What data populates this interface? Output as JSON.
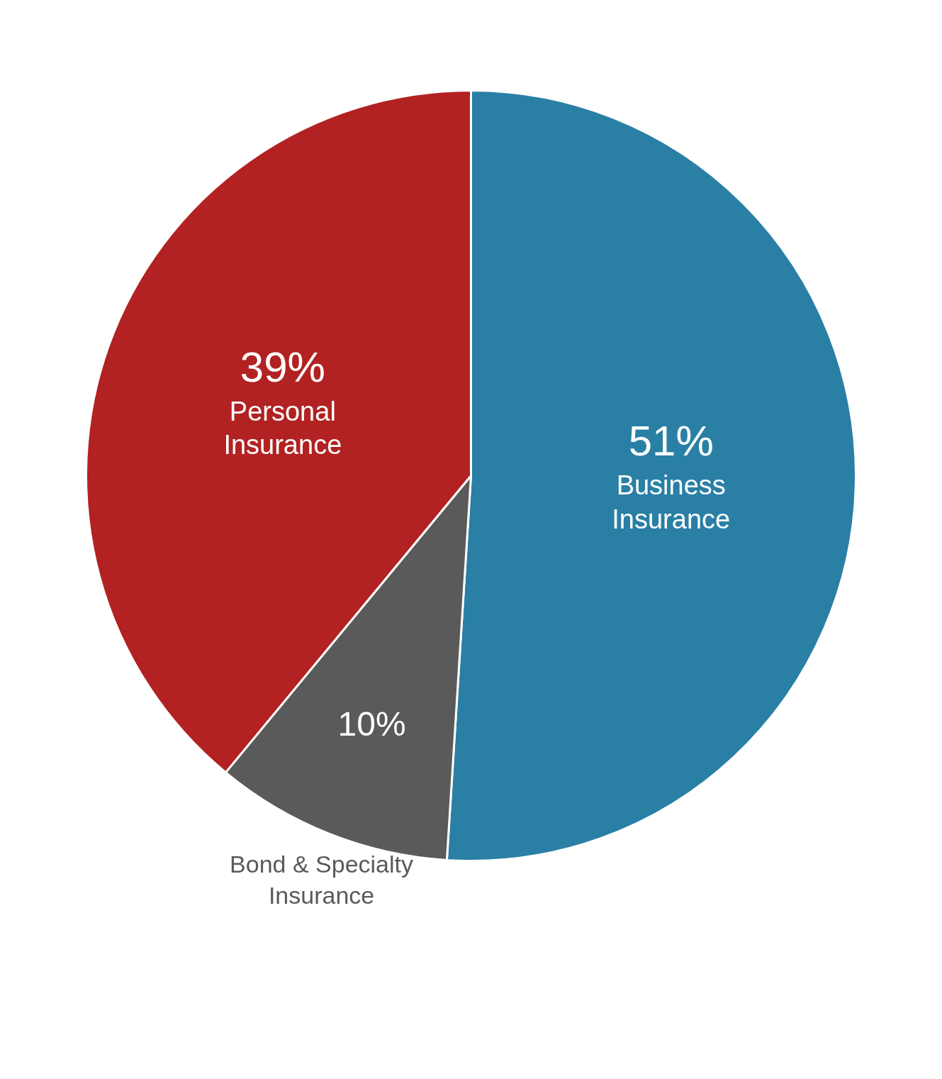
{
  "chart_data": {
    "type": "pie",
    "categories": [
      "Business\nInsurance",
      "Bond & Specialty\nInsurance",
      "Personal\nInsurance"
    ],
    "values": [
      51,
      10,
      39
    ],
    "value_labels": [
      "51%",
      "10%",
      "39%"
    ],
    "colors": [
      "#2a7fa5",
      "#5a5a5a",
      "#b22222"
    ],
    "data_labels": true
  }
}
